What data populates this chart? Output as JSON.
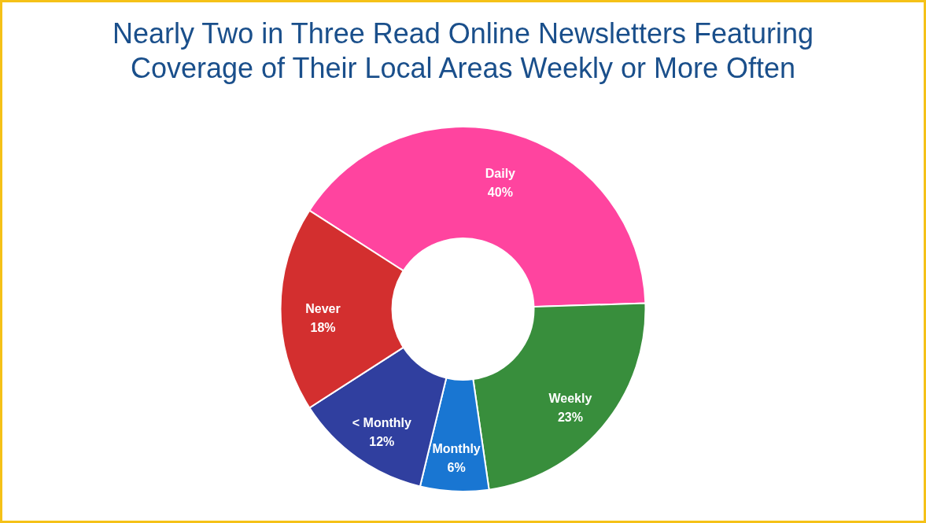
{
  "chart_data": {
    "type": "donut",
    "title": "Nearly Two in Three Read Online Newsletters Featuring Coverage of Their Local Areas Weekly or More Often",
    "categories": [
      "Daily",
      "Weekly",
      "Monthly",
      "< Monthly",
      "Never"
    ],
    "values": [
      40,
      23,
      6,
      12,
      18
    ],
    "value_labels": [
      "40%",
      "23%",
      "6%",
      "12%",
      "18%"
    ],
    "colors": [
      "#ff449f",
      "#388e3c",
      "#1976d2",
      "#303f9f",
      "#d32f2f"
    ]
  }
}
